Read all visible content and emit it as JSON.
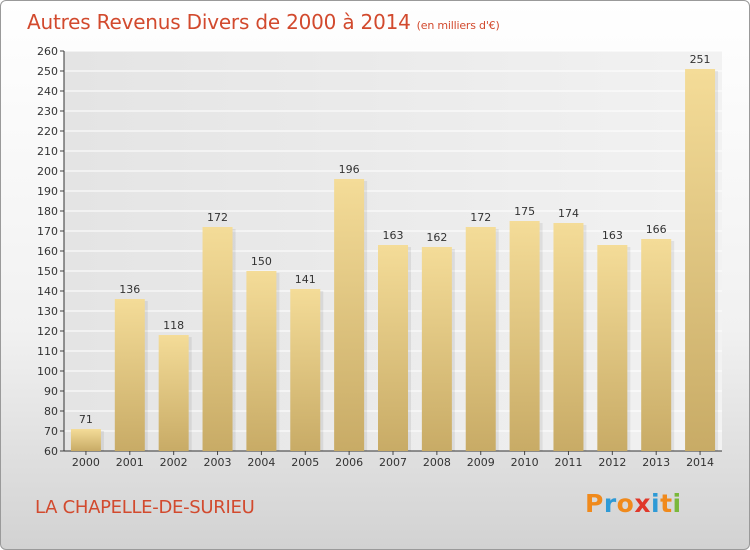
{
  "chart_data": {
    "type": "bar",
    "title": "Autres Revenus Divers de 2000 à 2014",
    "unit": "(en milliers d'€)",
    "categories": [
      "2000",
      "2001",
      "2002",
      "2003",
      "2004",
      "2005",
      "2006",
      "2007",
      "2008",
      "2009",
      "2010",
      "2011",
      "2012",
      "2013",
      "2014"
    ],
    "values": [
      71,
      136,
      118,
      172,
      150,
      141,
      196,
      163,
      162,
      172,
      175,
      174,
      163,
      166,
      251
    ],
    "xlabel": "",
    "ylabel": "",
    "ylim": [
      60,
      260
    ],
    "yticks": [
      60,
      70,
      80,
      90,
      100,
      110,
      120,
      130,
      140,
      150,
      160,
      170,
      180,
      190,
      200,
      210,
      220,
      230,
      240,
      250,
      260
    ],
    "grid": true,
    "bar_color": "#f0d58f"
  },
  "place": "LA CHAPELLE-DE-SURIEU",
  "logo": {
    "letters": [
      "P",
      "r",
      "o",
      "x",
      "i",
      "t",
      "i"
    ],
    "colors": [
      "#f08a1c",
      "#2e9ad6",
      "#f08a1c",
      "#e0382a",
      "#2e9ad6",
      "#f08a1c",
      "#7ab83a"
    ]
  }
}
